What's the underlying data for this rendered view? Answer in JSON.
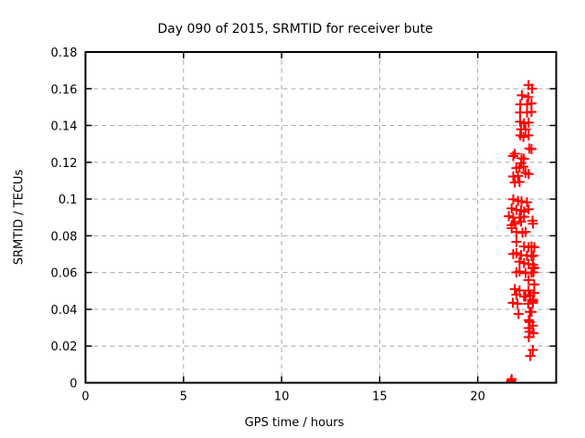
{
  "title": "Day 090 of 2015, SRMTID for receiver bute",
  "chart_data": {
    "type": "scatter",
    "title": "Day 090 of 2015, SRMTID for receiver bute",
    "xlabel": "GPS time / hours",
    "ylabel": "SRMTID / TECUs",
    "xlim": [
      0,
      24
    ],
    "ylim": [
      0,
      0.18
    ],
    "x_ticks": [
      0,
      5,
      10,
      15,
      20
    ],
    "x_tick_labels": [
      "0",
      "5",
      "10",
      "15",
      "20"
    ],
    "y_ticks": [
      0,
      0.02,
      0.04,
      0.06,
      0.08,
      0.1,
      0.12,
      0.14,
      0.16,
      0.18
    ],
    "y_tick_labels": [
      "0",
      "0.02",
      "0.04",
      "0.06",
      "0.08",
      "0.1",
      "0.12",
      "0.14",
      "0.16",
      "0.18"
    ],
    "grid": true,
    "legend": "none",
    "marker": "plus",
    "marker_color": "#ff0000",
    "grid_color": "#a8a8a8",
    "border_color": "#000000",
    "series": [
      {
        "name": "SRMTID",
        "points": [
          [
            22.59,
            0.162
          ],
          [
            22.77,
            0.1601
          ],
          [
            22.25,
            0.1565
          ],
          [
            22.57,
            0.1555
          ],
          [
            22.17,
            0.1515
          ],
          [
            22.51,
            0.1515
          ],
          [
            22.74,
            0.152
          ],
          [
            22.16,
            0.1471
          ],
          [
            22.51,
            0.1471
          ],
          [
            22.74,
            0.1474
          ],
          [
            22.16,
            0.1421
          ],
          [
            22.36,
            0.1412
          ],
          [
            22.59,
            0.1416
          ],
          [
            22.21,
            0.1379
          ],
          [
            22.44,
            0.1379
          ],
          [
            22.17,
            0.1346
          ],
          [
            22.33,
            0.1338
          ],
          [
            22.59,
            0.1346
          ],
          [
            22.74,
            0.1272
          ],
          [
            21.89,
            0.1247
          ],
          [
            22.63,
            0.1275
          ],
          [
            21.81,
            0.1234
          ],
          [
            22.23,
            0.1222
          ],
          [
            22.35,
            0.1219
          ],
          [
            22.21,
            0.1194
          ],
          [
            21.97,
            0.1168
          ],
          [
            22.13,
            0.1173
          ],
          [
            22.33,
            0.1176
          ],
          [
            22.44,
            0.1143
          ],
          [
            22.59,
            0.1136
          ],
          [
            21.81,
            0.1123
          ],
          [
            22.05,
            0.1126
          ],
          [
            21.89,
            0.109
          ],
          [
            22.13,
            0.1093
          ],
          [
            21.81,
            0.0999
          ],
          [
            22.05,
            0.099
          ],
          [
            22.23,
            0.0987
          ],
          [
            22.51,
            0.0982
          ],
          [
            21.73,
            0.0949
          ],
          [
            21.97,
            0.0941
          ],
          [
            22.21,
            0.0937
          ],
          [
            22.36,
            0.0932
          ],
          [
            22.59,
            0.0944
          ],
          [
            21.58,
            0.0907
          ],
          [
            21.81,
            0.0899
          ],
          [
            22.13,
            0.0899
          ],
          [
            22.36,
            0.0904
          ],
          [
            22.79,
            0.0882
          ],
          [
            21.73,
            0.0858
          ],
          [
            21.89,
            0.0866
          ],
          [
            22.21,
            0.0877
          ],
          [
            22.82,
            0.0866
          ],
          [
            21.73,
            0.0841
          ],
          [
            21.97,
            0.0821
          ],
          [
            22.28,
            0.0816
          ],
          [
            22.44,
            0.0821
          ],
          [
            21.97,
            0.0767
          ],
          [
            22.36,
            0.0742
          ],
          [
            22.59,
            0.0738
          ],
          [
            22.74,
            0.0742
          ],
          [
            22.88,
            0.0738
          ],
          [
            21.81,
            0.0701
          ],
          [
            21.97,
            0.0706
          ],
          [
            22.21,
            0.0695
          ],
          [
            22.51,
            0.0692
          ],
          [
            22.74,
            0.0689
          ],
          [
            22.84,
            0.0692
          ],
          [
            22.13,
            0.0659
          ],
          [
            22.36,
            0.0651
          ],
          [
            22.59,
            0.0646
          ],
          [
            22.82,
            0.0642
          ],
          [
            22.82,
            0.0623
          ],
          [
            22.88,
            0.0626
          ],
          [
            21.97,
            0.0601
          ],
          [
            22.13,
            0.0606
          ],
          [
            22.44,
            0.0596
          ],
          [
            22.74,
            0.0601
          ],
          [
            22.84,
            0.0601
          ],
          [
            22.59,
            0.0559
          ],
          [
            22.88,
            0.0535
          ],
          [
            21.89,
            0.051
          ],
          [
            22.13,
            0.0502
          ],
          [
            22.59,
            0.0502
          ],
          [
            22.88,
            0.049
          ],
          [
            21.97,
            0.048
          ],
          [
            22.67,
            0.0477
          ],
          [
            22.36,
            0.0469
          ],
          [
            22.44,
            0.0469
          ],
          [
            21.79,
            0.0435
          ],
          [
            22.03,
            0.043
          ],
          [
            22.57,
            0.043
          ],
          [
            22.81,
            0.0435
          ],
          [
            22.82,
            0.0452
          ],
          [
            22.81,
            0.0444
          ],
          [
            22.08,
            0.0374
          ],
          [
            22.65,
            0.0386
          ],
          [
            22.74,
            0.0386
          ],
          [
            22.6,
            0.0341
          ],
          [
            22.65,
            0.0331
          ],
          [
            22.81,
            0.0311
          ],
          [
            22.6,
            0.0298
          ],
          [
            22.65,
            0.0278
          ],
          [
            22.84,
            0.027
          ],
          [
            22.6,
            0.0248
          ],
          [
            22.81,
            0.0179
          ],
          [
            22.68,
            0.0146
          ],
          [
            21.7,
            0.001
          ],
          [
            21.73,
            0.002
          ]
        ]
      }
    ]
  }
}
